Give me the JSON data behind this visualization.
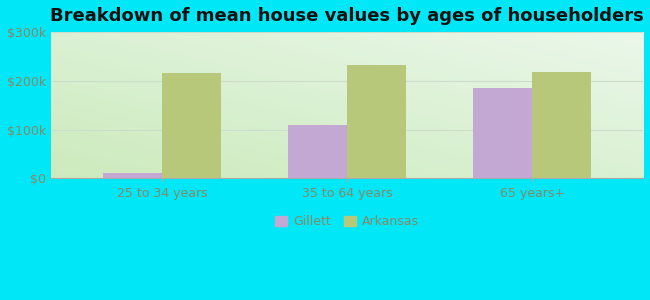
{
  "title": "Breakdown of mean house values by ages of householders",
  "categories": [
    "25 to 34 years",
    "35 to 64 years",
    "65 years+"
  ],
  "gillett_values": [
    10000,
    110000,
    185000
  ],
  "arkansas_values": [
    215000,
    232000,
    218000
  ],
  "gillett_color": "#c4a8d4",
  "arkansas_color": "#b8c87a",
  "background_outer": "#00e8f8",
  "ylim": [
    0,
    300000
  ],
  "yticks": [
    0,
    100000,
    200000,
    300000
  ],
  "ytick_labels": [
    "$0",
    "$100k",
    "$200k",
    "$300k"
  ],
  "bar_width": 0.32,
  "legend_labels": [
    "Gillett",
    "Arkansas"
  ],
  "title_fontsize": 13,
  "tick_fontsize": 9,
  "legend_fontsize": 9,
  "tick_color": "#888866",
  "grid_color": "#ccddcc"
}
